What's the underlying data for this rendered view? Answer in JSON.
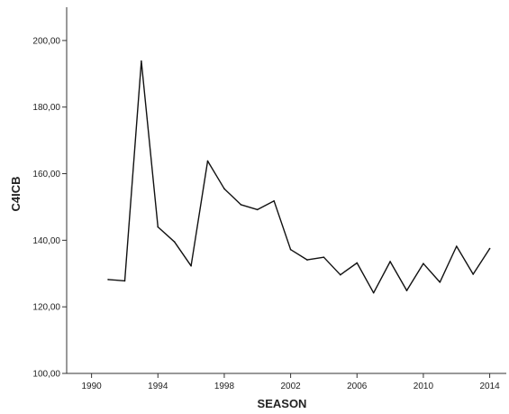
{
  "chart_data": {
    "type": "line",
    "xlabel": "SEASON",
    "ylabel": "C4ICB",
    "xlim": [
      1988.5,
      2015
    ],
    "ylim": [
      100,
      210
    ],
    "xticks": [
      1990,
      1994,
      1998,
      2002,
      2006,
      2010,
      2014
    ],
    "xtick_labels": [
      "1990",
      "1994",
      "1998",
      "2002",
      "2006",
      "2010",
      "2014"
    ],
    "yticks": [
      100,
      120,
      140,
      160,
      180,
      200
    ],
    "ytick_labels": [
      "100,00",
      "120,00",
      "140,00",
      "160,00",
      "180,00",
      "200,00"
    ],
    "grid": false,
    "series": [
      {
        "color": "#111111",
        "x": [
          1991,
          1992,
          1993,
          1994,
          1995,
          1996,
          1997,
          1998,
          1999,
          2000,
          2001,
          2002,
          2003,
          2004,
          2005,
          2006,
          2007,
          2008,
          2009,
          2010,
          2011,
          2012,
          2013,
          2014
        ],
        "y": [
          128.2,
          127.8,
          193.8,
          144.0,
          139.5,
          132.3,
          163.8,
          155.5,
          150.7,
          149.2,
          151.8,
          137.2,
          134.1,
          134.9,
          129.6,
          133.2,
          124.2,
          133.6,
          124.9,
          133.0,
          127.4,
          138.2,
          129.8,
          137.5
        ]
      }
    ]
  }
}
